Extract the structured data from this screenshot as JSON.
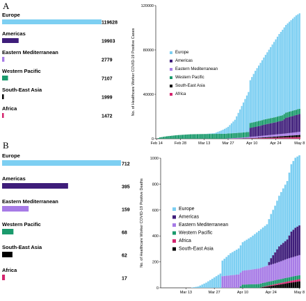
{
  "colors": {
    "europe": "#7dcff2",
    "americas": "#3e1d7a",
    "eastern_mediterranean": "#a77be6",
    "western_pacific": "#1a9a6c",
    "south_east_asia": "#000000",
    "africa": "#d4246e"
  },
  "chart_data": [
    {
      "panel": "A",
      "type": "bar",
      "orientation": "horizontal",
      "categories": [
        "Europe",
        "Americas",
        "Eastern Mediterranean",
        "Western Pacific",
        "South-East Asia",
        "Africa"
      ],
      "values": [
        119628,
        19903,
        2779,
        7107,
        1999,
        1472
      ],
      "value_labels": [
        "119628",
        "19903",
        "2779",
        "7107",
        "1999",
        "1472"
      ]
    },
    {
      "panel": "A",
      "type": "bar",
      "stacked": true,
      "ylabel": "No. of Healthcare Worker COVID-19 Positive Cases",
      "ylim": [
        0,
        120000
      ],
      "y_ticks": [
        0,
        40000,
        80000,
        120000
      ],
      "y_tick_labels": [
        "0",
        "40000",
        "80000",
        "120000"
      ],
      "x_tick_labels": [
        "Feb 14",
        "Feb 28",
        "Mar 13",
        "Mar 27",
        "Apr 10",
        "Apr 24",
        "May 8"
      ],
      "x_tick_positions": [
        0,
        14,
        28,
        42,
        56,
        70,
        84
      ],
      "n_days": 85,
      "legend": [
        "Europe",
        "Americas",
        "Eastern Mediterranean",
        "Western Pacific",
        "South-East Asia",
        "Africa"
      ],
      "legend_position": "center-left",
      "series": [
        {
          "name": "Europe",
          "keyframes": [
            [
              0,
              0
            ],
            [
              28,
              0
            ],
            [
              34,
              600
            ],
            [
              38,
              3000
            ],
            [
              42,
              6000
            ],
            [
              46,
              12000
            ],
            [
              48,
              18000
            ],
            [
              50,
              24000
            ],
            [
              52,
              30000
            ],
            [
              54,
              36000
            ],
            [
              56,
              41000
            ],
            [
              58,
              46000
            ],
            [
              60,
              50000
            ],
            [
              62,
              54000
            ],
            [
              64,
              58000
            ],
            [
              66,
              62000
            ],
            [
              68,
              66000
            ],
            [
              70,
              70000
            ],
            [
              72,
              74000
            ],
            [
              74,
              77000
            ],
            [
              76,
              79000
            ],
            [
              78,
              81000
            ],
            [
              80,
              83000
            ],
            [
              82,
              85000
            ],
            [
              84,
              86000
            ]
          ]
        },
        {
          "name": "Americas",
          "keyframes": [
            [
              0,
              0
            ],
            [
              54,
              0
            ],
            [
              55,
              8000
            ],
            [
              60,
              9000
            ],
            [
              64,
              10000
            ],
            [
              70,
              11000
            ],
            [
              74,
              12000
            ],
            [
              76,
              14000
            ],
            [
              80,
              15000
            ],
            [
              84,
              16000
            ]
          ]
        },
        {
          "name": "Eastern Mediterranean",
          "keyframes": [
            [
              0,
              0
            ],
            [
              40,
              0
            ],
            [
              42,
              300
            ],
            [
              50,
              800
            ],
            [
              56,
              1200
            ],
            [
              64,
              1600
            ],
            [
              70,
              1900
            ],
            [
              76,
              2200
            ],
            [
              84,
              2800
            ]
          ]
        },
        {
          "name": "Western Pacific",
          "keyframes": [
            [
              0,
              0
            ],
            [
              2,
              1200
            ],
            [
              6,
              2200
            ],
            [
              12,
              3200
            ],
            [
              20,
              4000
            ],
            [
              30,
              4300
            ],
            [
              40,
              4400
            ],
            [
              50,
              4500
            ],
            [
              60,
              4600
            ],
            [
              70,
              4700
            ],
            [
              84,
              4800
            ]
          ]
        },
        {
          "name": "South-East Asia",
          "keyframes": [
            [
              0,
              0
            ],
            [
              50,
              0
            ],
            [
              58,
              300
            ],
            [
              66,
              800
            ],
            [
              74,
              1300
            ],
            [
              84,
              2000
            ]
          ]
        },
        {
          "name": "Africa",
          "keyframes": [
            [
              0,
              0
            ],
            [
              44,
              0
            ],
            [
              50,
              200
            ],
            [
              60,
              500
            ],
            [
              70,
              900
            ],
            [
              84,
              1400
            ]
          ]
        }
      ]
    },
    {
      "panel": "B",
      "type": "bar",
      "orientation": "horizontal",
      "categories": [
        "Europe",
        "Americas",
        "Eastern Mediterranean",
        "Western Pacific",
        "South-East Asia",
        "Africa"
      ],
      "values": [
        712,
        395,
        159,
        68,
        62,
        17
      ],
      "value_labels": [
        "712",
        "395",
        "159",
        "68",
        "62",
        "17"
      ]
    },
    {
      "panel": "B",
      "type": "bar",
      "stacked": true,
      "ylabel": "No. of Healthcare Worker COVID-19 Positive Deaths",
      "ylim": [
        0,
        1000
      ],
      "y_ticks": [
        0,
        200,
        400,
        600,
        800,
        1000
      ],
      "y_tick_labels": [
        "0",
        "200",
        "400",
        "600",
        "800",
        "1000"
      ],
      "x_tick_labels": [
        "Mar 13",
        "Mar 27",
        "Apr 10",
        "Apr 24",
        "May 8"
      ],
      "x_tick_positions": [
        12,
        26,
        40,
        54,
        68
      ],
      "n_days": 69,
      "legend": [
        "Europe",
        "Americas",
        "Eastern Mediterranean",
        "Western Pacific",
        "Africa",
        "South-East Asia"
      ],
      "legend_position": "center-left",
      "series": [
        {
          "name": "Europe",
          "keyframes": [
            [
              0,
              0
            ],
            [
              14,
              0
            ],
            [
              18,
              10
            ],
            [
              22,
              40
            ],
            [
              26,
              80
            ],
            [
              30,
              120
            ],
            [
              34,
              170
            ],
            [
              38,
              200
            ],
            [
              40,
              220
            ],
            [
              44,
              250
            ],
            [
              48,
              290
            ],
            [
              52,
              320
            ],
            [
              56,
              360
            ],
            [
              60,
              420
            ],
            [
              62,
              450
            ],
            [
              64,
              520
            ],
            [
              66,
              540
            ],
            [
              68,
              540
            ]
          ]
        },
        {
          "name": "Americas",
          "keyframes": [
            [
              0,
              0
            ],
            [
              52,
              0
            ],
            [
              54,
              50
            ],
            [
              58,
              120
            ],
            [
              62,
              150
            ],
            [
              64,
              200
            ],
            [
              66,
              220
            ],
            [
              68,
              230
            ]
          ]
        },
        {
          "name": "Eastern Mediterranean",
          "keyframes": [
            [
              0,
              0
            ],
            [
              29,
              0
            ],
            [
              30,
              90
            ],
            [
              36,
              100
            ],
            [
              42,
              110
            ],
            [
              48,
              120
            ],
            [
              56,
              130
            ],
            [
              62,
              145
            ],
            [
              68,
              155
            ]
          ]
        },
        {
          "name": "Western Pacific",
          "keyframes": [
            [
              0,
              0
            ],
            [
              38,
              0
            ],
            [
              40,
              25
            ],
            [
              50,
              30
            ],
            [
              60,
              30
            ],
            [
              68,
              30
            ]
          ]
        },
        {
          "name": "Africa",
          "keyframes": [
            [
              0,
              0
            ],
            [
              48,
              0
            ],
            [
              52,
              5
            ],
            [
              58,
              10
            ],
            [
              64,
              15
            ],
            [
              68,
              17
            ]
          ]
        },
        {
          "name": "South-East Asia",
          "keyframes": [
            [
              0,
              0
            ],
            [
              48,
              0
            ],
            [
              52,
              10
            ],
            [
              58,
              25
            ],
            [
              64,
              40
            ],
            [
              68,
              50
            ]
          ]
        }
      ]
    }
  ]
}
